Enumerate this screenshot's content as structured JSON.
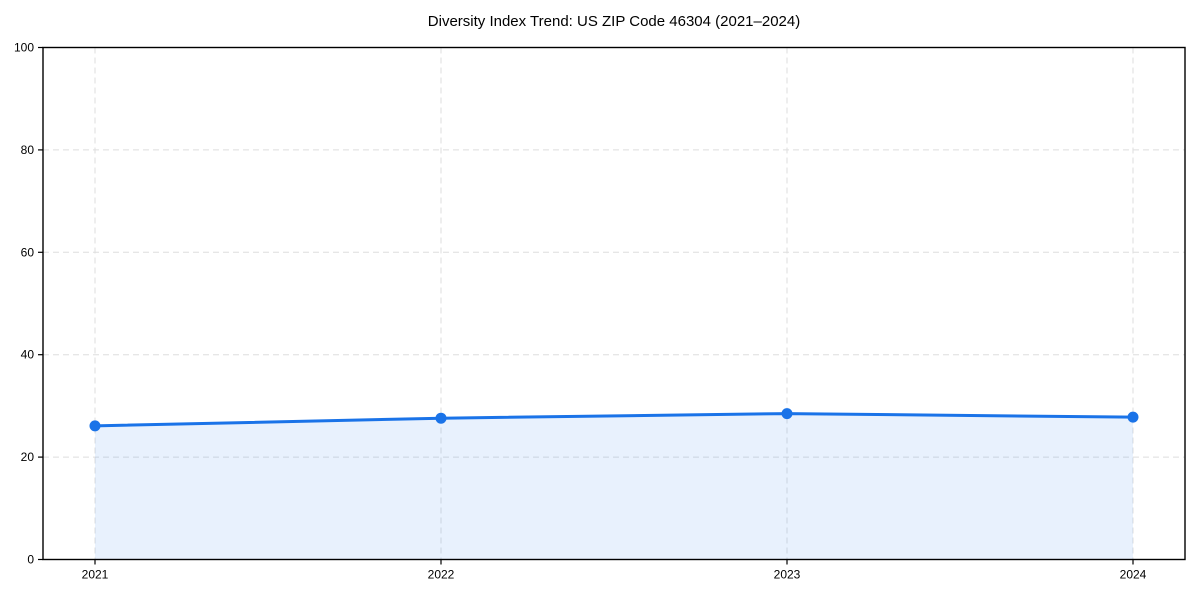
{
  "page": {
    "background": "#ffffff"
  },
  "chart_data": {
    "type": "area",
    "title": "Diversity Index Trend: US ZIP Code 46304 (2021–2024)",
    "x": [
      "2021",
      "2022",
      "2023",
      "2024"
    ],
    "series": [
      {
        "name": "Diversity Index",
        "values": [
          26.1,
          27.6,
          28.5,
          27.8
        ]
      }
    ],
    "xlabel": "",
    "ylabel": "",
    "ylim": [
      0,
      100
    ],
    "yticks": [
      0,
      20,
      40,
      60,
      80,
      100
    ],
    "grid": true,
    "grid_style": "dashed",
    "legend_position": "none",
    "area_fill_to_zero": true,
    "marker": "circle",
    "colors": {
      "line": "#1a73e8",
      "marker": "#1a73e8",
      "area": "#1a73e8",
      "grid": "#dedede",
      "axis": "#000000",
      "tick_text": "#000000",
      "title_text": "#000000"
    },
    "area_opacity": 0.1
  }
}
